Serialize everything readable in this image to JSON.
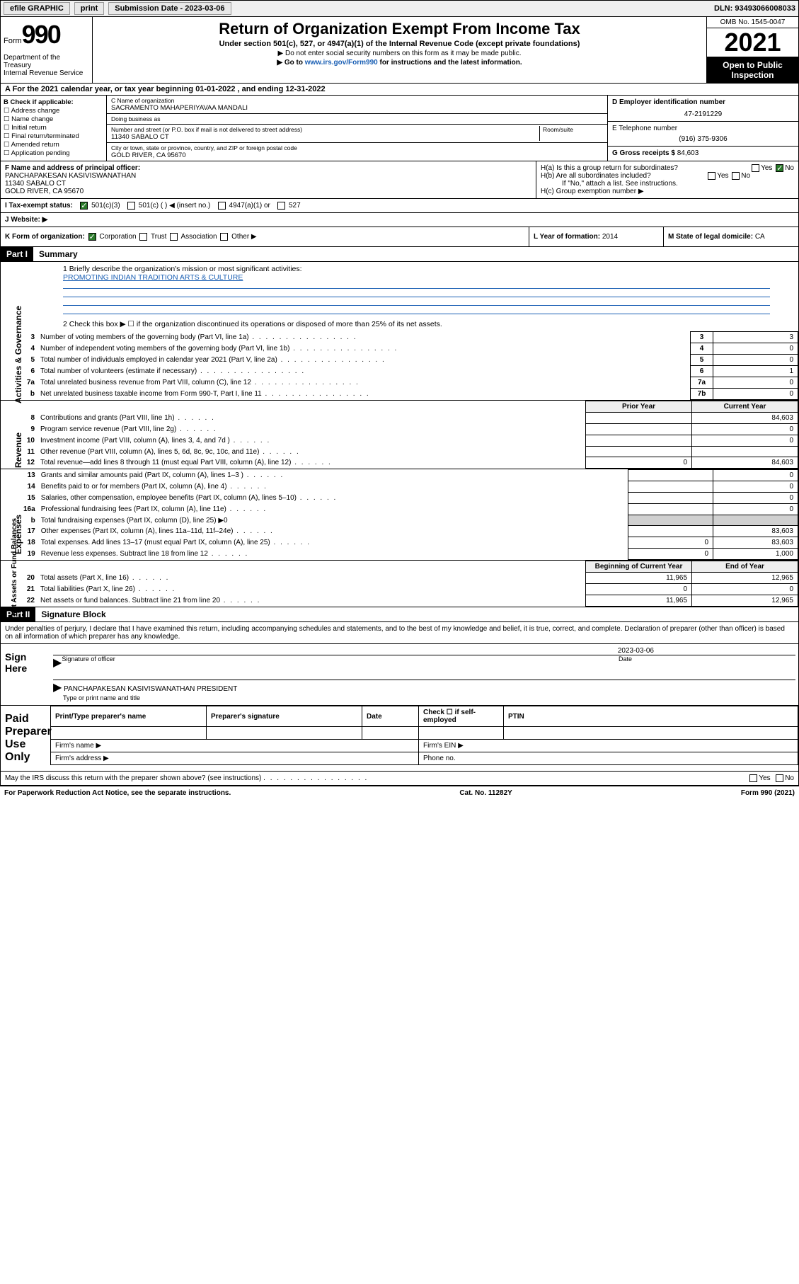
{
  "topbar": {
    "efile": "efile GRAPHIC",
    "print": "print",
    "sub_label": "Submission Date - 2023-03-06",
    "dln": "DLN: 93493066008033"
  },
  "header": {
    "form_word": "Form",
    "form_no": "990",
    "title": "Return of Organization Exempt From Income Tax",
    "sub1": "Under section 501(c), 527, or 4947(a)(1) of the Internal Revenue Code (except private foundations)",
    "sub2": "▶ Do not enter social security numbers on this form as it may be made public.",
    "sub3_pre": "▶ Go to ",
    "sub3_link": "www.irs.gov/Form990",
    "sub3_post": " for instructions and the latest information.",
    "dept": "Department of the Treasury\nInternal Revenue Service",
    "omb": "OMB No. 1545-0047",
    "year": "2021",
    "open": "Open to Public Inspection"
  },
  "lineA": "A For the 2021 calendar year, or tax year beginning 01-01-2022   , and ending 12-31-2022",
  "B": {
    "label": "B Check if applicable:",
    "opts": [
      "Address change",
      "Name change",
      "Initial return",
      "Final return/terminated",
      "Amended return",
      "Application pending"
    ]
  },
  "C": {
    "name_lbl": "C Name of organization",
    "name": "SACRAMENTO MAHAPERIYAVAA MANDALI",
    "dba_lbl": "Doing business as",
    "dba": "",
    "street_lbl": "Number and street (or P.O. box if mail is not delivered to street address)",
    "room_lbl": "Room/suite",
    "street": "11340 SABALO CT",
    "city_lbl": "City or town, state or province, country, and ZIP or foreign postal code",
    "city": "GOLD RIVER, CA  95670"
  },
  "D": {
    "lbl": "D Employer identification number",
    "val": "47-2191229"
  },
  "E": {
    "lbl": "E Telephone number",
    "val": "(916) 375-9306"
  },
  "G": {
    "lbl": "G Gross receipts $",
    "val": "84,603"
  },
  "F": {
    "lbl": "F Name and address of principal officer:",
    "name": "PANCHAPAKESAN KASIVISWANATHAN",
    "street": "11340 SABALO CT",
    "city": "GOLD RIVER, CA  95670"
  },
  "H": {
    "a": "H(a)  Is this a group return for subordinates?",
    "b": "H(b)  Are all subordinates included?",
    "b_note": "If \"No,\" attach a list. See instructions.",
    "c": "H(c)  Group exemption number ▶",
    "yes": "Yes",
    "no": "No"
  },
  "I": {
    "lbl": "I    Tax-exempt status:",
    "opts": [
      "501(c)(3)",
      "501(c) (  ) ◀ (insert no.)",
      "4947(a)(1) or",
      "527"
    ]
  },
  "J": {
    "lbl": "J    Website: ▶"
  },
  "K": {
    "lbl": "K Form of organization:",
    "opts": [
      "Corporation",
      "Trust",
      "Association",
      "Other ▶"
    ]
  },
  "L": {
    "lbl": "L Year of formation:",
    "val": "2014"
  },
  "M": {
    "lbl": "M State of legal domicile:",
    "val": "CA"
  },
  "part1": {
    "hdr": "Part I",
    "title": "Summary",
    "q1": "1  Briefly describe the organization's mission or most significant activities:",
    "mission": "PROMOTING INDIAN TRADITION ARTS & CULTURE",
    "q2": "2   Check this box ▶ ☐  if the organization discontinued its operations or disposed of more than 25% of its net assets.",
    "rows_gov": [
      {
        "n": "3",
        "t": "Number of voting members of the governing body (Part VI, line 1a)",
        "box": "3",
        "v": "3"
      },
      {
        "n": "4",
        "t": "Number of independent voting members of the governing body (Part VI, line 1b)",
        "box": "4",
        "v": "0"
      },
      {
        "n": "5",
        "t": "Total number of individuals employed in calendar year 2021 (Part V, line 2a)",
        "box": "5",
        "v": "0"
      },
      {
        "n": "6",
        "t": "Total number of volunteers (estimate if necessary)",
        "box": "6",
        "v": "1"
      },
      {
        "n": "7a",
        "t": "Total unrelated business revenue from Part VIII, column (C), line 12",
        "box": "7a",
        "v": "0"
      },
      {
        "n": "b",
        "t": "Net unrelated business taxable income from Form 990-T, Part I, line 11",
        "box": "7b",
        "v": "0"
      }
    ],
    "col_hdr": {
      "prior": "Prior Year",
      "curr": "Current Year"
    },
    "rows_rev": [
      {
        "n": "8",
        "t": "Contributions and grants (Part VIII, line 1h)",
        "p": "",
        "c": "84,603"
      },
      {
        "n": "9",
        "t": "Program service revenue (Part VIII, line 2g)",
        "p": "",
        "c": "0"
      },
      {
        "n": "10",
        "t": "Investment income (Part VIII, column (A), lines 3, 4, and 7d )",
        "p": "",
        "c": "0"
      },
      {
        "n": "11",
        "t": "Other revenue (Part VIII, column (A), lines 5, 6d, 8c, 9c, 10c, and 11e)",
        "p": "",
        "c": ""
      },
      {
        "n": "12",
        "t": "Total revenue—add lines 8 through 11 (must equal Part VIII, column (A), line 12)",
        "p": "0",
        "c": "84,603"
      }
    ],
    "rows_exp": [
      {
        "n": "13",
        "t": "Grants and similar amounts paid (Part IX, column (A), lines 1–3 )",
        "p": "",
        "c": "0"
      },
      {
        "n": "14",
        "t": "Benefits paid to or for members (Part IX, column (A), line 4)",
        "p": "",
        "c": "0"
      },
      {
        "n": "15",
        "t": "Salaries, other compensation, employee benefits (Part IX, column (A), lines 5–10)",
        "p": "",
        "c": "0"
      },
      {
        "n": "16a",
        "t": "Professional fundraising fees (Part IX, column (A), line 11e)",
        "p": "",
        "c": "0"
      },
      {
        "n": "b",
        "t": "Total fundraising expenses (Part IX, column (D), line 25) ▶0",
        "p": null,
        "c": null
      },
      {
        "n": "17",
        "t": "Other expenses (Part IX, column (A), lines 11a–11d, 11f–24e)",
        "p": "",
        "c": "83,603"
      },
      {
        "n": "18",
        "t": "Total expenses. Add lines 13–17 (must equal Part IX, column (A), line 25)",
        "p": "0",
        "c": "83,603"
      },
      {
        "n": "19",
        "t": "Revenue less expenses. Subtract line 18 from line 12",
        "p": "0",
        "c": "1,000"
      }
    ],
    "col_hdr2": {
      "beg": "Beginning of Current Year",
      "end": "End of Year"
    },
    "rows_net": [
      {
        "n": "20",
        "t": "Total assets (Part X, line 16)",
        "p": "11,965",
        "c": "12,965"
      },
      {
        "n": "21",
        "t": "Total liabilities (Part X, line 26)",
        "p": "0",
        "c": "0"
      },
      {
        "n": "22",
        "t": "Net assets or fund balances. Subtract line 21 from line 20",
        "p": "11,965",
        "c": "12,965"
      }
    ],
    "side_gov": "Activities & Governance",
    "side_rev": "Revenue",
    "side_exp": "Expenses",
    "side_net": "Net Assets or Fund Balances"
  },
  "part2": {
    "hdr": "Part II",
    "title": "Signature Block",
    "decl": "Under penalties of perjury, I declare that I have examined this return, including accompanying schedules and statements, and to the best of my knowledge and belief, it is true, correct, and complete. Declaration of preparer (other than officer) is based on all information of which preparer has any knowledge.",
    "sign_here": "Sign Here",
    "sig_officer": "Signature of officer",
    "date_lbl": "Date",
    "date_val": "2023-03-06",
    "name_title": "PANCHAPAKESAN KASIVISWANATHAN  PRESIDENT",
    "type_name": "Type or print name and title",
    "paid": "Paid Preparer Use Only",
    "prep_cols": [
      "Print/Type preparer's name",
      "Preparer's signature",
      "Date",
      "Check ☐ if self-employed",
      "PTIN"
    ],
    "firm_name": "Firm's name  ▶",
    "firm_ein": "Firm's EIN ▶",
    "firm_addr": "Firm's address ▶",
    "phone": "Phone no.",
    "may_irs": "May the IRS discuss this return with the preparer shown above? (see instructions)"
  },
  "footer": {
    "l": "For Paperwork Reduction Act Notice, see the separate instructions.",
    "m": "Cat. No. 11282Y",
    "r": "Form 990 (2021)"
  }
}
